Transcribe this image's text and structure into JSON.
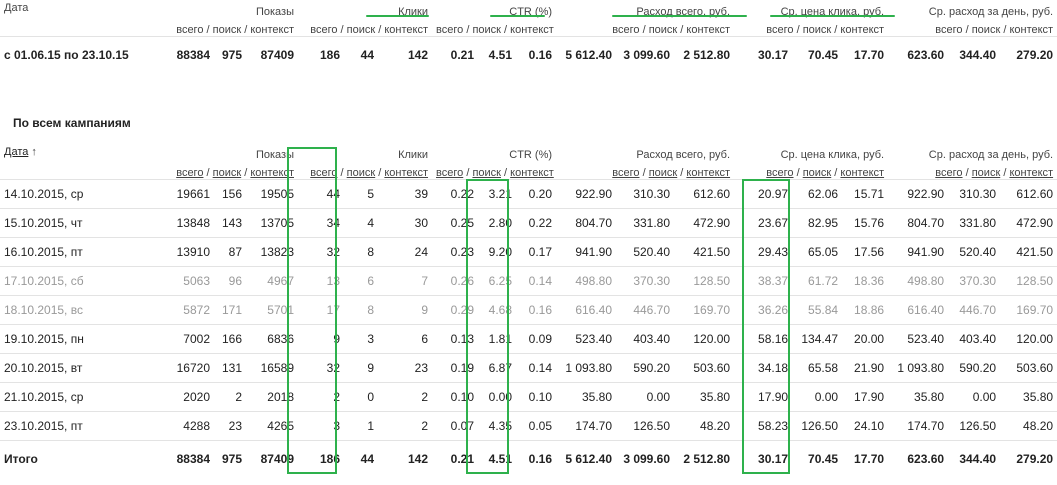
{
  "summary": {
    "labels": {
      "date": "Дата",
      "shows": "Показы",
      "clicks": "Клики",
      "ctr": "CTR (%)",
      "spend": "Расход всего, руб.",
      "cpc": "Ср. цена клика, руб.",
      "daily": "Ср. расход за день, руб.",
      "vsego": "всего",
      "poisk": "поиск",
      "kontekst": "контекст",
      "slash": "/"
    },
    "row": [
      "с 01.06.15 по 23.10.15",
      "88384",
      "975",
      "87409",
      "186",
      "44",
      "142",
      "0.21",
      "4.51",
      "0.16",
      "5 612.40",
      "3 099.60",
      "2 512.80",
      "30.17",
      "70.45",
      "17.70",
      "623.60",
      "344.40",
      "279.20"
    ]
  },
  "section_title": "По всем кампаниям",
  "detail": {
    "labels": {
      "date": "Дата",
      "sort_arrow": "↑",
      "shows": "Показы",
      "clicks": "Клики",
      "ctr": "CTR (%)",
      "spend": "Расход всего, руб.",
      "cpc": "Ср. цена клика, руб.",
      "daily": "Ср. расход за день, руб.",
      "vsego": "всего",
      "poisk": "поиск",
      "kontekst": "контекст",
      "slash": "/"
    },
    "rows": [
      [
        "14.10.2015, ср",
        "19661",
        "156",
        "19505",
        "44",
        "5",
        "39",
        "0.22",
        "3.21",
        "0.20",
        "922.90",
        "310.30",
        "612.60",
        "20.97",
        "62.06",
        "15.71",
        "922.90",
        "310.30",
        "612.60"
      ],
      [
        "15.10.2015, чт",
        "13848",
        "143",
        "13705",
        "34",
        "4",
        "30",
        "0.25",
        "2.80",
        "0.22",
        "804.70",
        "331.80",
        "472.90",
        "23.67",
        "82.95",
        "15.76",
        "804.70",
        "331.80",
        "472.90"
      ],
      [
        "16.10.2015, пт",
        "13910",
        "87",
        "13823",
        "32",
        "8",
        "24",
        "0.23",
        "9.20",
        "0.17",
        "941.90",
        "520.40",
        "421.50",
        "29.43",
        "65.05",
        "17.56",
        "941.90",
        "520.40",
        "421.50"
      ],
      [
        "17.10.2015, сб",
        "5063",
        "96",
        "4967",
        "13",
        "6",
        "7",
        "0.26",
        "6.25",
        "0.14",
        "498.80",
        "370.30",
        "128.50",
        "38.37",
        "61.72",
        "18.36",
        "498.80",
        "370.30",
        "128.50"
      ],
      [
        "18.10.2015, вс",
        "5872",
        "171",
        "5701",
        "17",
        "8",
        "9",
        "0.29",
        "4.68",
        "0.16",
        "616.40",
        "446.70",
        "169.70",
        "36.26",
        "55.84",
        "18.86",
        "616.40",
        "446.70",
        "169.70"
      ],
      [
        "19.10.2015, пн",
        "7002",
        "166",
        "6836",
        "9",
        "3",
        "6",
        "0.13",
        "1.81",
        "0.09",
        "523.40",
        "403.40",
        "120.00",
        "58.16",
        "134.47",
        "20.00",
        "523.40",
        "403.40",
        "120.00"
      ],
      [
        "20.10.2015, вт",
        "16720",
        "131",
        "16589",
        "32",
        "9",
        "23",
        "0.19",
        "6.87",
        "0.14",
        "1 093.80",
        "590.20",
        "503.60",
        "34.18",
        "65.58",
        "21.90",
        "1 093.80",
        "590.20",
        "503.60"
      ],
      [
        "21.10.2015, ср",
        "2020",
        "2",
        "2018",
        "2",
        "0",
        "2",
        "0.10",
        "0.00",
        "0.10",
        "35.80",
        "0.00",
        "35.80",
        "17.90",
        "0.00",
        "17.90",
        "35.80",
        "0.00",
        "35.80"
      ],
      [
        "23.10.2015, пт",
        "4288",
        "23",
        "4265",
        "3",
        "1",
        "2",
        "0.07",
        "4.35",
        "0.05",
        "174.70",
        "126.50",
        "48.20",
        "58.23",
        "126.50",
        "24.10",
        "174.70",
        "126.50",
        "48.20"
      ]
    ],
    "weekend_rows": [
      3,
      4
    ],
    "total": [
      "Итого",
      "88384",
      "975",
      "87409",
      "186",
      "44",
      "142",
      "0.21",
      "4.51",
      "0.16",
      "5 612.40",
      "3 099.60",
      "2 512.80",
      "30.17",
      "70.45",
      "17.70",
      "623.60",
      "344.40",
      "279.20"
    ]
  },
  "colors": {
    "highlight": "#2eb14c",
    "weekend_text": "#999999"
  }
}
